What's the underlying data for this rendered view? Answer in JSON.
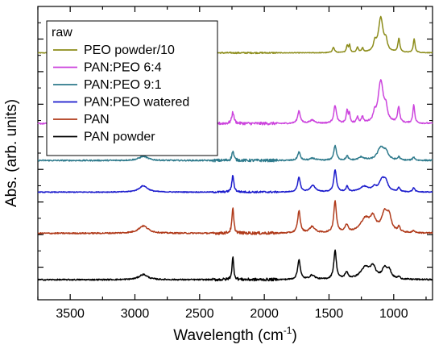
{
  "chart_data": {
    "type": "line",
    "title": "",
    "xlabel": "Wavelength (cm",
    "xlabel_sup": "-1",
    "xlabel_end": ")",
    "ylabel": "Abs. (arb. units)",
    "xlim": [
      3750,
      700
    ],
    "x_reversed": true,
    "xticks": [
      3500,
      3000,
      2500,
      2000,
      1500,
      1000
    ],
    "x_minor_step": 250,
    "y_tick_count": 8,
    "y_tick_labels": false,
    "grid": false,
    "legend": {
      "title": "raw",
      "position": "top-left",
      "entries": [
        "PEO powder/10",
        "PAN:PEO 6:4",
        "PAN:PEO 9:1",
        "PAN:PEO watered",
        "PAN",
        "PAN powder"
      ]
    },
    "series": [
      {
        "name": "PEO powder/10",
        "color": "#8c8c1a",
        "baseline": 9.0,
        "noise": 0.015,
        "slope": 0.0,
        "peaks": [
          [
            2885,
            0.05,
            60
          ],
          [
            1466,
            0.25,
            10
          ],
          [
            1359,
            0.35,
            8
          ],
          [
            1341,
            0.35,
            6
          ],
          [
            1280,
            0.25,
            8
          ],
          [
            1241,
            0.2,
            8
          ],
          [
            1146,
            0.4,
            12
          ],
          [
            1100,
            1.65,
            22
          ],
          [
            1060,
            0.45,
            12
          ],
          [
            960,
            0.65,
            9
          ],
          [
            842,
            0.65,
            8
          ]
        ],
        "shoulders": []
      },
      {
        "name": "PAN:PEO 6:4",
        "color": "#cc44dd",
        "baseline": 5.65,
        "noise": 0.03,
        "slope": 0.0,
        "peaks": [
          [
            2930,
            0.12,
            40
          ],
          [
            2243,
            0.55,
            10
          ],
          [
            1732,
            0.6,
            12
          ],
          [
            1630,
            0.15,
            25
          ],
          [
            1453,
            0.85,
            12
          ],
          [
            1360,
            0.6,
            8
          ],
          [
            1343,
            0.45,
            6
          ],
          [
            1280,
            0.3,
            8
          ],
          [
            1242,
            0.3,
            8
          ],
          [
            1148,
            0.35,
            10
          ],
          [
            1100,
            2.0,
            25
          ],
          [
            1060,
            0.55,
            12
          ],
          [
            962,
            0.75,
            10
          ],
          [
            845,
            0.9,
            8
          ]
        ],
        "shoulders": []
      },
      {
        "name": "PAN:PEO 9:1",
        "color": "#2e7a8c",
        "baseline": 3.9,
        "noise": 0.03,
        "slope": 0.0,
        "peaks": [
          [
            2935,
            0.2,
            40
          ],
          [
            2243,
            0.45,
            9
          ],
          [
            1732,
            0.4,
            12
          ],
          [
            1625,
            0.1,
            25
          ],
          [
            1453,
            0.7,
            12
          ],
          [
            1360,
            0.2,
            10
          ],
          [
            1250,
            0.15,
            25
          ],
          [
            1100,
            0.6,
            30
          ],
          [
            1060,
            0.35,
            20
          ],
          [
            960,
            0.15,
            10
          ],
          [
            845,
            0.15,
            10
          ]
        ],
        "shoulders": []
      },
      {
        "name": "PAN:PEO watered",
        "color": "#1a1acc",
        "baseline": 2.4,
        "noise": 0.02,
        "slope": 0.0,
        "peaks": [
          [
            2935,
            0.3,
            40
          ],
          [
            2243,
            0.8,
            9
          ],
          [
            1732,
            0.7,
            12
          ],
          [
            1625,
            0.3,
            25
          ],
          [
            1453,
            1.05,
            12
          ],
          [
            1360,
            0.25,
            10
          ],
          [
            1230,
            0.25,
            40
          ],
          [
            1150,
            0.2,
            20
          ],
          [
            1090,
            0.55,
            25
          ],
          [
            1060,
            0.4,
            20
          ],
          [
            960,
            0.2,
            10
          ],
          [
            845,
            0.2,
            10
          ]
        ],
        "shoulders": []
      },
      {
        "name": "PAN",
        "color": "#b03a1a",
        "baseline": 0.45,
        "noise": 0.03,
        "slope": 0.0,
        "peaks": [
          [
            2935,
            0.35,
            45
          ],
          [
            2243,
            1.2,
            8
          ],
          [
            1732,
            1.05,
            12
          ],
          [
            1630,
            0.3,
            25
          ],
          [
            1453,
            1.5,
            12
          ],
          [
            1365,
            0.35,
            15
          ],
          [
            1220,
            0.65,
            45
          ],
          [
            1160,
            0.6,
            25
          ],
          [
            1070,
            0.9,
            30
          ],
          [
            1035,
            0.6,
            20
          ],
          [
            960,
            0.25,
            10
          ],
          [
            845,
            0.1,
            10
          ]
        ],
        "shoulders": []
      },
      {
        "name": "PAN powder",
        "color": "#000000",
        "baseline": -1.75,
        "noise": 0.03,
        "slope": 0.0,
        "peaks": [
          [
            2935,
            0.25,
            40
          ],
          [
            2243,
            1.05,
            8
          ],
          [
            1732,
            0.95,
            12
          ],
          [
            1630,
            0.2,
            25
          ],
          [
            1453,
            1.35,
            12
          ],
          [
            1365,
            0.3,
            15
          ],
          [
            1220,
            0.55,
            45
          ],
          [
            1160,
            0.5,
            25
          ],
          [
            1070,
            0.5,
            25
          ],
          [
            1035,
            0.35,
            20
          ],
          [
            960,
            0.1,
            10
          ]
        ],
        "shoulders": []
      }
    ],
    "ylim": [
      -2.7,
      11.2
    ]
  }
}
